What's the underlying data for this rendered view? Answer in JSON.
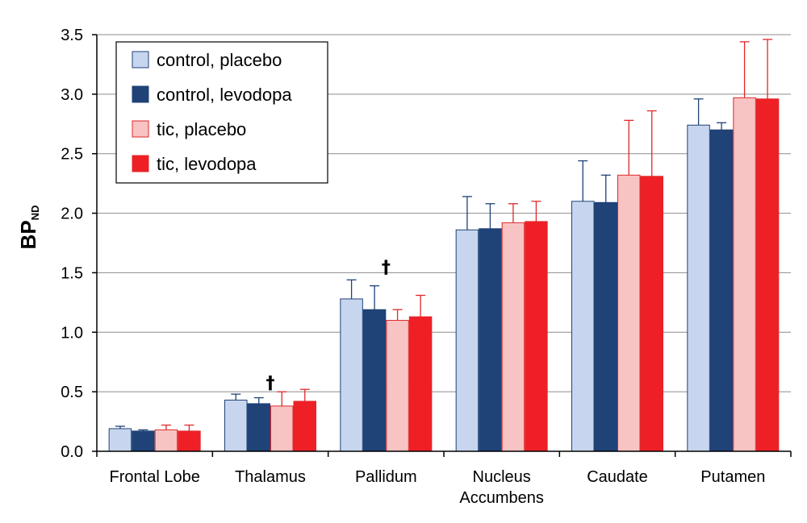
{
  "chart_data": {
    "type": "bar",
    "ylabel": "BP",
    "ylabel_subscript": "ND",
    "ylim": [
      0,
      3.5
    ],
    "yticks": [
      "0.0",
      "0.5",
      "1.0",
      "1.5",
      "2.0",
      "2.5",
      "3.0",
      "3.5"
    ],
    "grid": true,
    "legend_position": "top-left",
    "categories": [
      "Frontal Lobe",
      "Thalamus",
      "Pallidum",
      "Nucleus\nAccumbens",
      "Caudate",
      "Putamen"
    ],
    "series": [
      {
        "name": "control, placebo",
        "fill": "#c7d6ee",
        "stroke": "#1f4277",
        "values": [
          0.19,
          0.43,
          1.28,
          1.86,
          2.1,
          2.74
        ],
        "errors": [
          0.02,
          0.05,
          0.16,
          0.28,
          0.34,
          0.22
        ]
      },
      {
        "name": "control, levodopa",
        "fill": "#1f4277",
        "stroke": "#1f4277",
        "values": [
          0.17,
          0.4,
          1.19,
          1.87,
          2.09,
          2.7
        ],
        "errors": [
          0.01,
          0.05,
          0.2,
          0.21,
          0.23,
          0.06
        ]
      },
      {
        "name": "tic, placebo",
        "fill": "#f8c3c3",
        "stroke": "#e0282a",
        "values": [
          0.18,
          0.38,
          1.1,
          1.92,
          2.32,
          2.97
        ],
        "errors": [
          0.04,
          0.12,
          0.09,
          0.16,
          0.46,
          0.47
        ]
      },
      {
        "name": "tic, levodopa",
        "fill": "#ee2026",
        "stroke": "#e0282a",
        "values": [
          0.17,
          0.42,
          1.13,
          1.93,
          2.31,
          2.96
        ],
        "errors": [
          0.05,
          0.1,
          0.18,
          0.17,
          0.55,
          0.5
        ]
      }
    ],
    "annotations": [
      {
        "text": "†",
        "category": "Thalamus",
        "y": 0.58
      },
      {
        "text": "†",
        "category": "Pallidum",
        "y": 1.55
      }
    ]
  }
}
